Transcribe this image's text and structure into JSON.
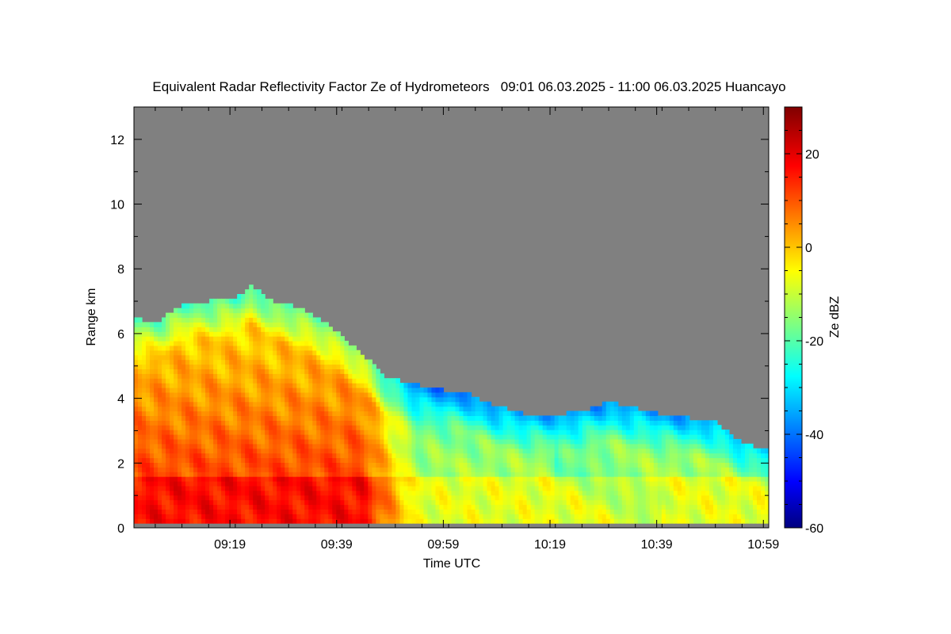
{
  "chart_data": {
    "type": "heatmap",
    "title": "Equivalent Radar Reflectivity Factor Ze of Hydrometeors   09:01 06.03.2025 - 11:00 06.03.2025 Huancayo",
    "xlabel": "Time UTC",
    "ylabel": "Range km",
    "colorbar_label": "Ze dBZ",
    "xlim_minutes_utc": [
      541,
      660
    ],
    "ylim_km": [
      0,
      13
    ],
    "x_ticks": [
      {
        "label": "09:19",
        "minute": 559
      },
      {
        "label": "09:39",
        "minute": 579
      },
      {
        "label": "09:59",
        "minute": 599
      },
      {
        "label": "10:19",
        "minute": 619
      },
      {
        "label": "10:39",
        "minute": 639
      },
      {
        "label": "10:59",
        "minute": 659
      }
    ],
    "y_ticks": [
      0,
      2,
      4,
      6,
      8,
      10,
      12
    ],
    "colorbar_range": [
      -60,
      30
    ],
    "colorbar_ticks": [
      20,
      0,
      -20,
      -40,
      -60
    ],
    "colormap": "jet",
    "no_data_color": "#808080",
    "echo_top_km": [
      [
        541,
        6.5
      ],
      [
        545,
        6.3
      ],
      [
        550,
        6.9
      ],
      [
        555,
        7.0
      ],
      [
        560,
        7.1
      ],
      [
        563,
        7.5
      ],
      [
        567,
        7.0
      ],
      [
        572,
        6.8
      ],
      [
        578,
        6.2
      ],
      [
        583,
        5.5
      ],
      [
        588,
        4.7
      ],
      [
        592,
        4.5
      ],
      [
        597,
        4.3
      ],
      [
        603,
        4.2
      ],
      [
        608,
        3.8
      ],
      [
        615,
        3.5
      ],
      [
        620,
        3.5
      ],
      [
        625,
        3.6
      ],
      [
        630,
        3.9
      ],
      [
        635,
        3.7
      ],
      [
        640,
        3.5
      ],
      [
        645,
        3.4
      ],
      [
        650,
        3.3
      ],
      [
        655,
        2.6
      ],
      [
        660,
        2.4
      ]
    ],
    "bright_band_km": 1.5,
    "surface_clutter_km": 0.2
  }
}
